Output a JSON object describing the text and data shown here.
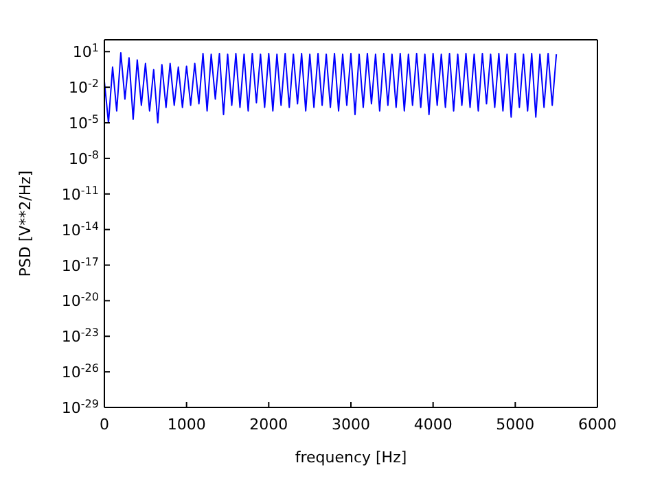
{
  "chart_data": {
    "type": "line",
    "xlabel": "frequency [Hz]",
    "ylabel": "PSD [V**2/Hz]",
    "log": "y",
    "grid": false,
    "marker": "none",
    "line_style": "solid",
    "xlim": [
      0,
      6000
    ],
    "xticks": [
      0,
      1000,
      2000,
      3000,
      4000,
      5000,
      6000
    ],
    "ylim": [
      1e-29,
      100
    ],
    "yticks": [
      {
        "value": 1e-29,
        "label": "10$^{-29}$"
      },
      {
        "value": 1e-26,
        "label": "10$^{-26}$"
      },
      {
        "value": 1e-23,
        "label": "10$^{-23}$"
      },
      {
        "value": 1e-20,
        "label": "10$^{-20}$"
      },
      {
        "value": 1e-17,
        "label": "10$^{-17}$"
      },
      {
        "value": 1e-14,
        "label": "10$^{-14}$"
      },
      {
        "value": 1e-11,
        "label": "10$^{-11}$"
      },
      {
        "value": 1e-08,
        "label": "10$^{-8}$"
      },
      {
        "value": 1e-05,
        "label": "10$^{-5}$"
      },
      {
        "value": 0.01,
        "label": "10$^{-2}$"
      },
      {
        "value": 10,
        "label": "10$^{1}$"
      }
    ],
    "x": [
      0,
      50,
      100,
      150,
      200,
      250,
      300,
      350,
      400,
      450,
      500,
      550,
      600,
      650,
      700,
      750,
      800,
      850,
      900,
      950,
      1000,
      1050,
      1100,
      1150,
      1200,
      1250,
      1300,
      1350,
      1400,
      1450,
      1500,
      1550,
      1600,
      1650,
      1700,
      1750,
      1800,
      1850,
      1900,
      1950,
      2000,
      2050,
      2100,
      2150,
      2200,
      2250,
      2300,
      2350,
      2400,
      2450,
      2500,
      2550,
      2600,
      2650,
      2700,
      2750,
      2800,
      2850,
      2900,
      2950,
      3000,
      3050,
      3100,
      3150,
      3200,
      3250,
      3300,
      3350,
      3400,
      3450,
      3500,
      3550,
      3600,
      3650,
      3700,
      3750,
      3800,
      3850,
      3900,
      3950,
      4000,
      4050,
      4100,
      4150,
      4200,
      4250,
      4300,
      4350,
      4400,
      4450,
      4500,
      4550,
      4600,
      4650,
      4700,
      4750,
      4800,
      4850,
      4900,
      4950,
      5000,
      5050,
      5100,
      5150,
      5200,
      5250,
      5300,
      5350,
      5400,
      5450,
      5500
    ],
    "series": [
      {
        "color": "#0000ff",
        "values": [
          0.03,
          1e-05,
          0.5,
          0.0001,
          8,
          0.001,
          3,
          2e-05,
          2,
          0.0003,
          1,
          0.0001,
          0.3,
          1e-05,
          0.8,
          0.0002,
          1,
          0.0003,
          0.5,
          0.0002,
          0.6,
          0.0003,
          1,
          0.0004,
          7,
          0.0001,
          6,
          0.001,
          7,
          5e-05,
          6,
          0.0003,
          7,
          0.0002,
          6,
          0.0001,
          7,
          0.0005,
          6,
          0.0002,
          7,
          0.0001,
          6,
          0.0003,
          7,
          0.0002,
          6,
          0.0004,
          7,
          0.0001,
          6,
          0.0002,
          7,
          0.0003,
          6,
          0.0002,
          7,
          0.0001,
          6,
          0.0003,
          7,
          5e-05,
          6,
          0.0002,
          7,
          0.0004,
          6,
          0.0001,
          7,
          0.0003,
          6,
          0.0002,
          7,
          0.0001,
          6,
          0.0003,
          7,
          0.0002,
          6,
          5e-05,
          7,
          0.0003,
          6,
          0.0002,
          7,
          0.0001,
          6,
          0.0003,
          7,
          0.0002,
          6,
          0.0001,
          7,
          0.0004,
          6,
          0.0002,
          7,
          0.0001,
          6,
          3e-05,
          7,
          0.0002,
          6,
          0.0001,
          7,
          3e-05,
          6,
          0.0002,
          7,
          0.0003,
          6
        ]
      }
    ]
  }
}
